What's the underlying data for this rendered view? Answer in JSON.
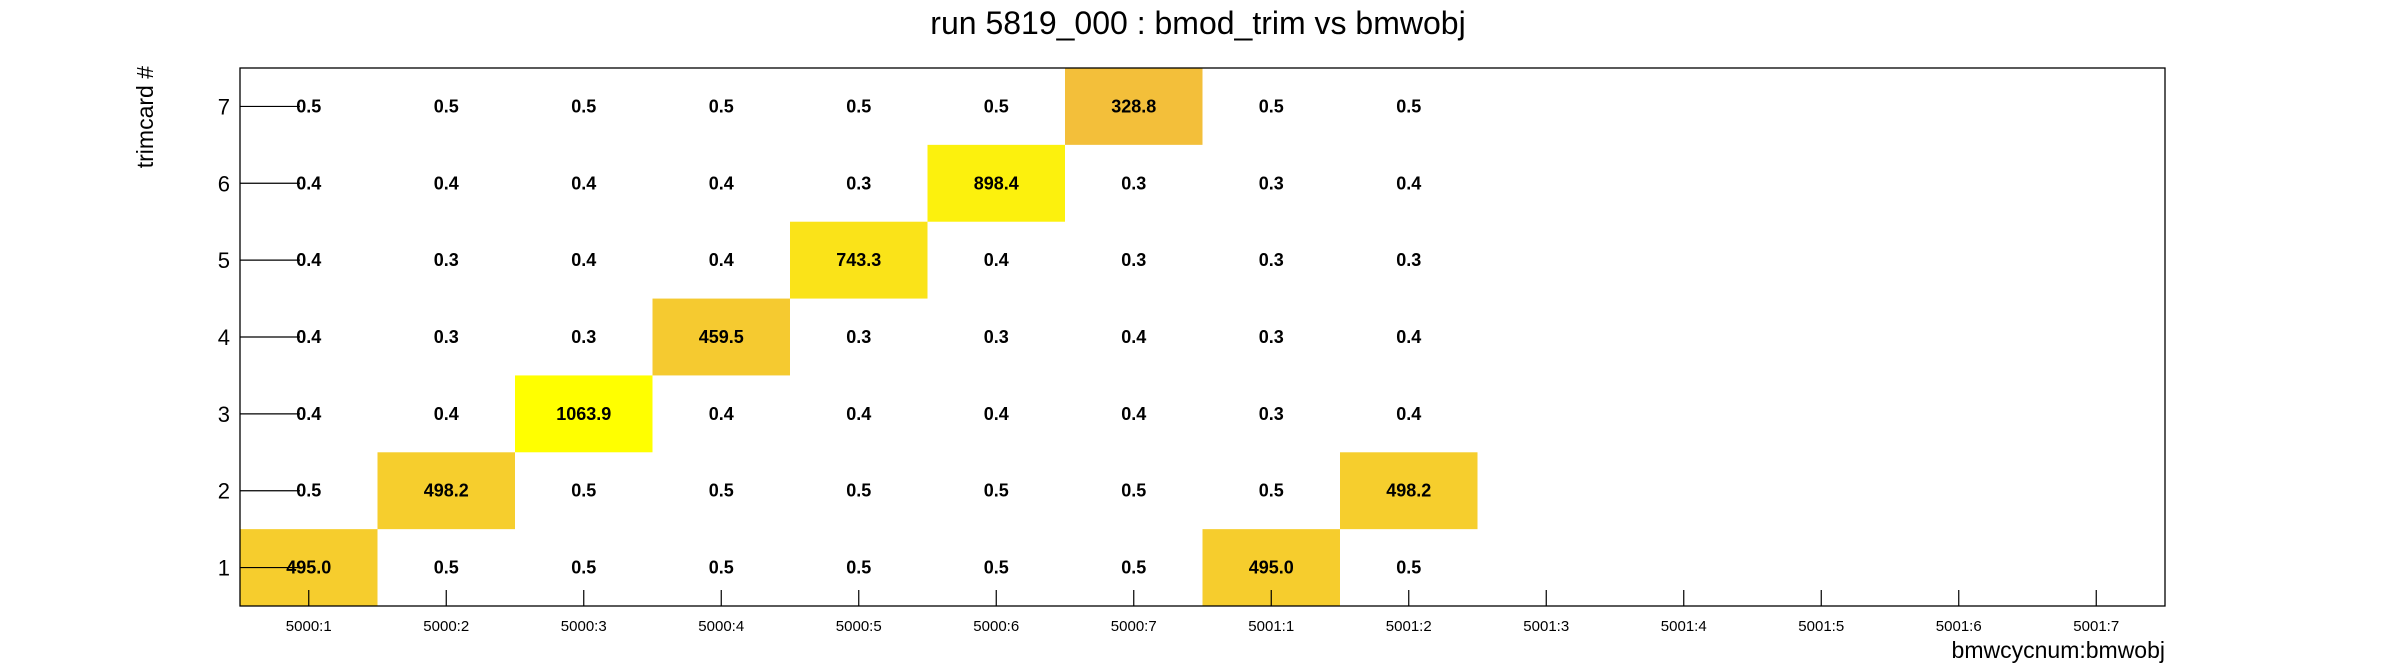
{
  "chart_data": {
    "type": "heatmap",
    "title": "run 5819_000 : bmod_trim vs bmwobj",
    "xlabel": "bmwcycnum:bmwobj",
    "ylabel": "trimcard #",
    "x_categories": [
      "5000:1",
      "5000:2",
      "5000:3",
      "5000:4",
      "5000:5",
      "5000:6",
      "5000:7",
      "5001:1",
      "5001:2",
      "5001:3",
      "5001:4",
      "5001:5",
      "5001:6",
      "5001:7"
    ],
    "y_categories": [
      "1",
      "2",
      "3",
      "4",
      "5",
      "6",
      "7"
    ],
    "cells": [
      {
        "x": "5000:1",
        "y": "1",
        "value": "495.0"
      },
      {
        "x": "5000:2",
        "y": "1",
        "value": "0.5"
      },
      {
        "x": "5000:3",
        "y": "1",
        "value": "0.5"
      },
      {
        "x": "5000:4",
        "y": "1",
        "value": "0.5"
      },
      {
        "x": "5000:5",
        "y": "1",
        "value": "0.5"
      },
      {
        "x": "5000:6",
        "y": "1",
        "value": "0.5"
      },
      {
        "x": "5000:7",
        "y": "1",
        "value": "0.5"
      },
      {
        "x": "5001:1",
        "y": "1",
        "value": "495.0"
      },
      {
        "x": "5001:2",
        "y": "1",
        "value": "0.5"
      },
      {
        "x": "5000:1",
        "y": "2",
        "value": "0.5"
      },
      {
        "x": "5000:2",
        "y": "2",
        "value": "498.2"
      },
      {
        "x": "5000:3",
        "y": "2",
        "value": "0.5"
      },
      {
        "x": "5000:4",
        "y": "2",
        "value": "0.5"
      },
      {
        "x": "5000:5",
        "y": "2",
        "value": "0.5"
      },
      {
        "x": "5000:6",
        "y": "2",
        "value": "0.5"
      },
      {
        "x": "5000:7",
        "y": "2",
        "value": "0.5"
      },
      {
        "x": "5001:1",
        "y": "2",
        "value": "0.5"
      },
      {
        "x": "5001:2",
        "y": "2",
        "value": "498.2"
      },
      {
        "x": "5000:1",
        "y": "3",
        "value": "0.4"
      },
      {
        "x": "5000:2",
        "y": "3",
        "value": "0.4"
      },
      {
        "x": "5000:3",
        "y": "3",
        "value": "1063.9"
      },
      {
        "x": "5000:4",
        "y": "3",
        "value": "0.4"
      },
      {
        "x": "5000:5",
        "y": "3",
        "value": "0.4"
      },
      {
        "x": "5000:6",
        "y": "3",
        "value": "0.4"
      },
      {
        "x": "5000:7",
        "y": "3",
        "value": "0.4"
      },
      {
        "x": "5001:1",
        "y": "3",
        "value": "0.3"
      },
      {
        "x": "5001:2",
        "y": "3",
        "value": "0.4"
      },
      {
        "x": "5000:1",
        "y": "4",
        "value": "0.4"
      },
      {
        "x": "5000:2",
        "y": "4",
        "value": "0.3"
      },
      {
        "x": "5000:3",
        "y": "4",
        "value": "0.3"
      },
      {
        "x": "5000:4",
        "y": "4",
        "value": "459.5"
      },
      {
        "x": "5000:5",
        "y": "4",
        "value": "0.3"
      },
      {
        "x": "5000:6",
        "y": "4",
        "value": "0.3"
      },
      {
        "x": "5000:7",
        "y": "4",
        "value": "0.4"
      },
      {
        "x": "5001:1",
        "y": "4",
        "value": "0.3"
      },
      {
        "x": "5001:2",
        "y": "4",
        "value": "0.4"
      },
      {
        "x": "5000:1",
        "y": "5",
        "value": "0.4"
      },
      {
        "x": "5000:2",
        "y": "5",
        "value": "0.3"
      },
      {
        "x": "5000:3",
        "y": "5",
        "value": "0.4"
      },
      {
        "x": "5000:4",
        "y": "5",
        "value": "0.4"
      },
      {
        "x": "5000:5",
        "y": "5",
        "value": "743.3"
      },
      {
        "x": "5000:6",
        "y": "5",
        "value": "0.4"
      },
      {
        "x": "5000:7",
        "y": "5",
        "value": "0.3"
      },
      {
        "x": "5001:1",
        "y": "5",
        "value": "0.3"
      },
      {
        "x": "5001:2",
        "y": "5",
        "value": "0.3"
      },
      {
        "x": "5000:1",
        "y": "6",
        "value": "0.4"
      },
      {
        "x": "5000:2",
        "y": "6",
        "value": "0.4"
      },
      {
        "x": "5000:3",
        "y": "6",
        "value": "0.4"
      },
      {
        "x": "5000:4",
        "y": "6",
        "value": "0.4"
      },
      {
        "x": "5000:5",
        "y": "6",
        "value": "0.3"
      },
      {
        "x": "5000:6",
        "y": "6",
        "value": "898.4"
      },
      {
        "x": "5000:7",
        "y": "6",
        "value": "0.3"
      },
      {
        "x": "5001:1",
        "y": "6",
        "value": "0.3"
      },
      {
        "x": "5001:2",
        "y": "6",
        "value": "0.4"
      },
      {
        "x": "5000:1",
        "y": "7",
        "value": "0.5"
      },
      {
        "x": "5000:2",
        "y": "7",
        "value": "0.5"
      },
      {
        "x": "5000:3",
        "y": "7",
        "value": "0.5"
      },
      {
        "x": "5000:4",
        "y": "7",
        "value": "0.5"
      },
      {
        "x": "5000:5",
        "y": "7",
        "value": "0.5"
      },
      {
        "x": "5000:6",
        "y": "7",
        "value": "0.5"
      },
      {
        "x": "5000:7",
        "y": "7",
        "value": "328.8"
      },
      {
        "x": "5001:1",
        "y": "7",
        "value": "0.5"
      },
      {
        "x": "5001:2",
        "y": "7",
        "value": "0.5"
      }
    ],
    "colors": {
      "scale_low": "#f3bf3a",
      "scale_high": "#ffff00",
      "axis": "#000000",
      "text": "#000000"
    },
    "legend": "none",
    "grid": false
  }
}
